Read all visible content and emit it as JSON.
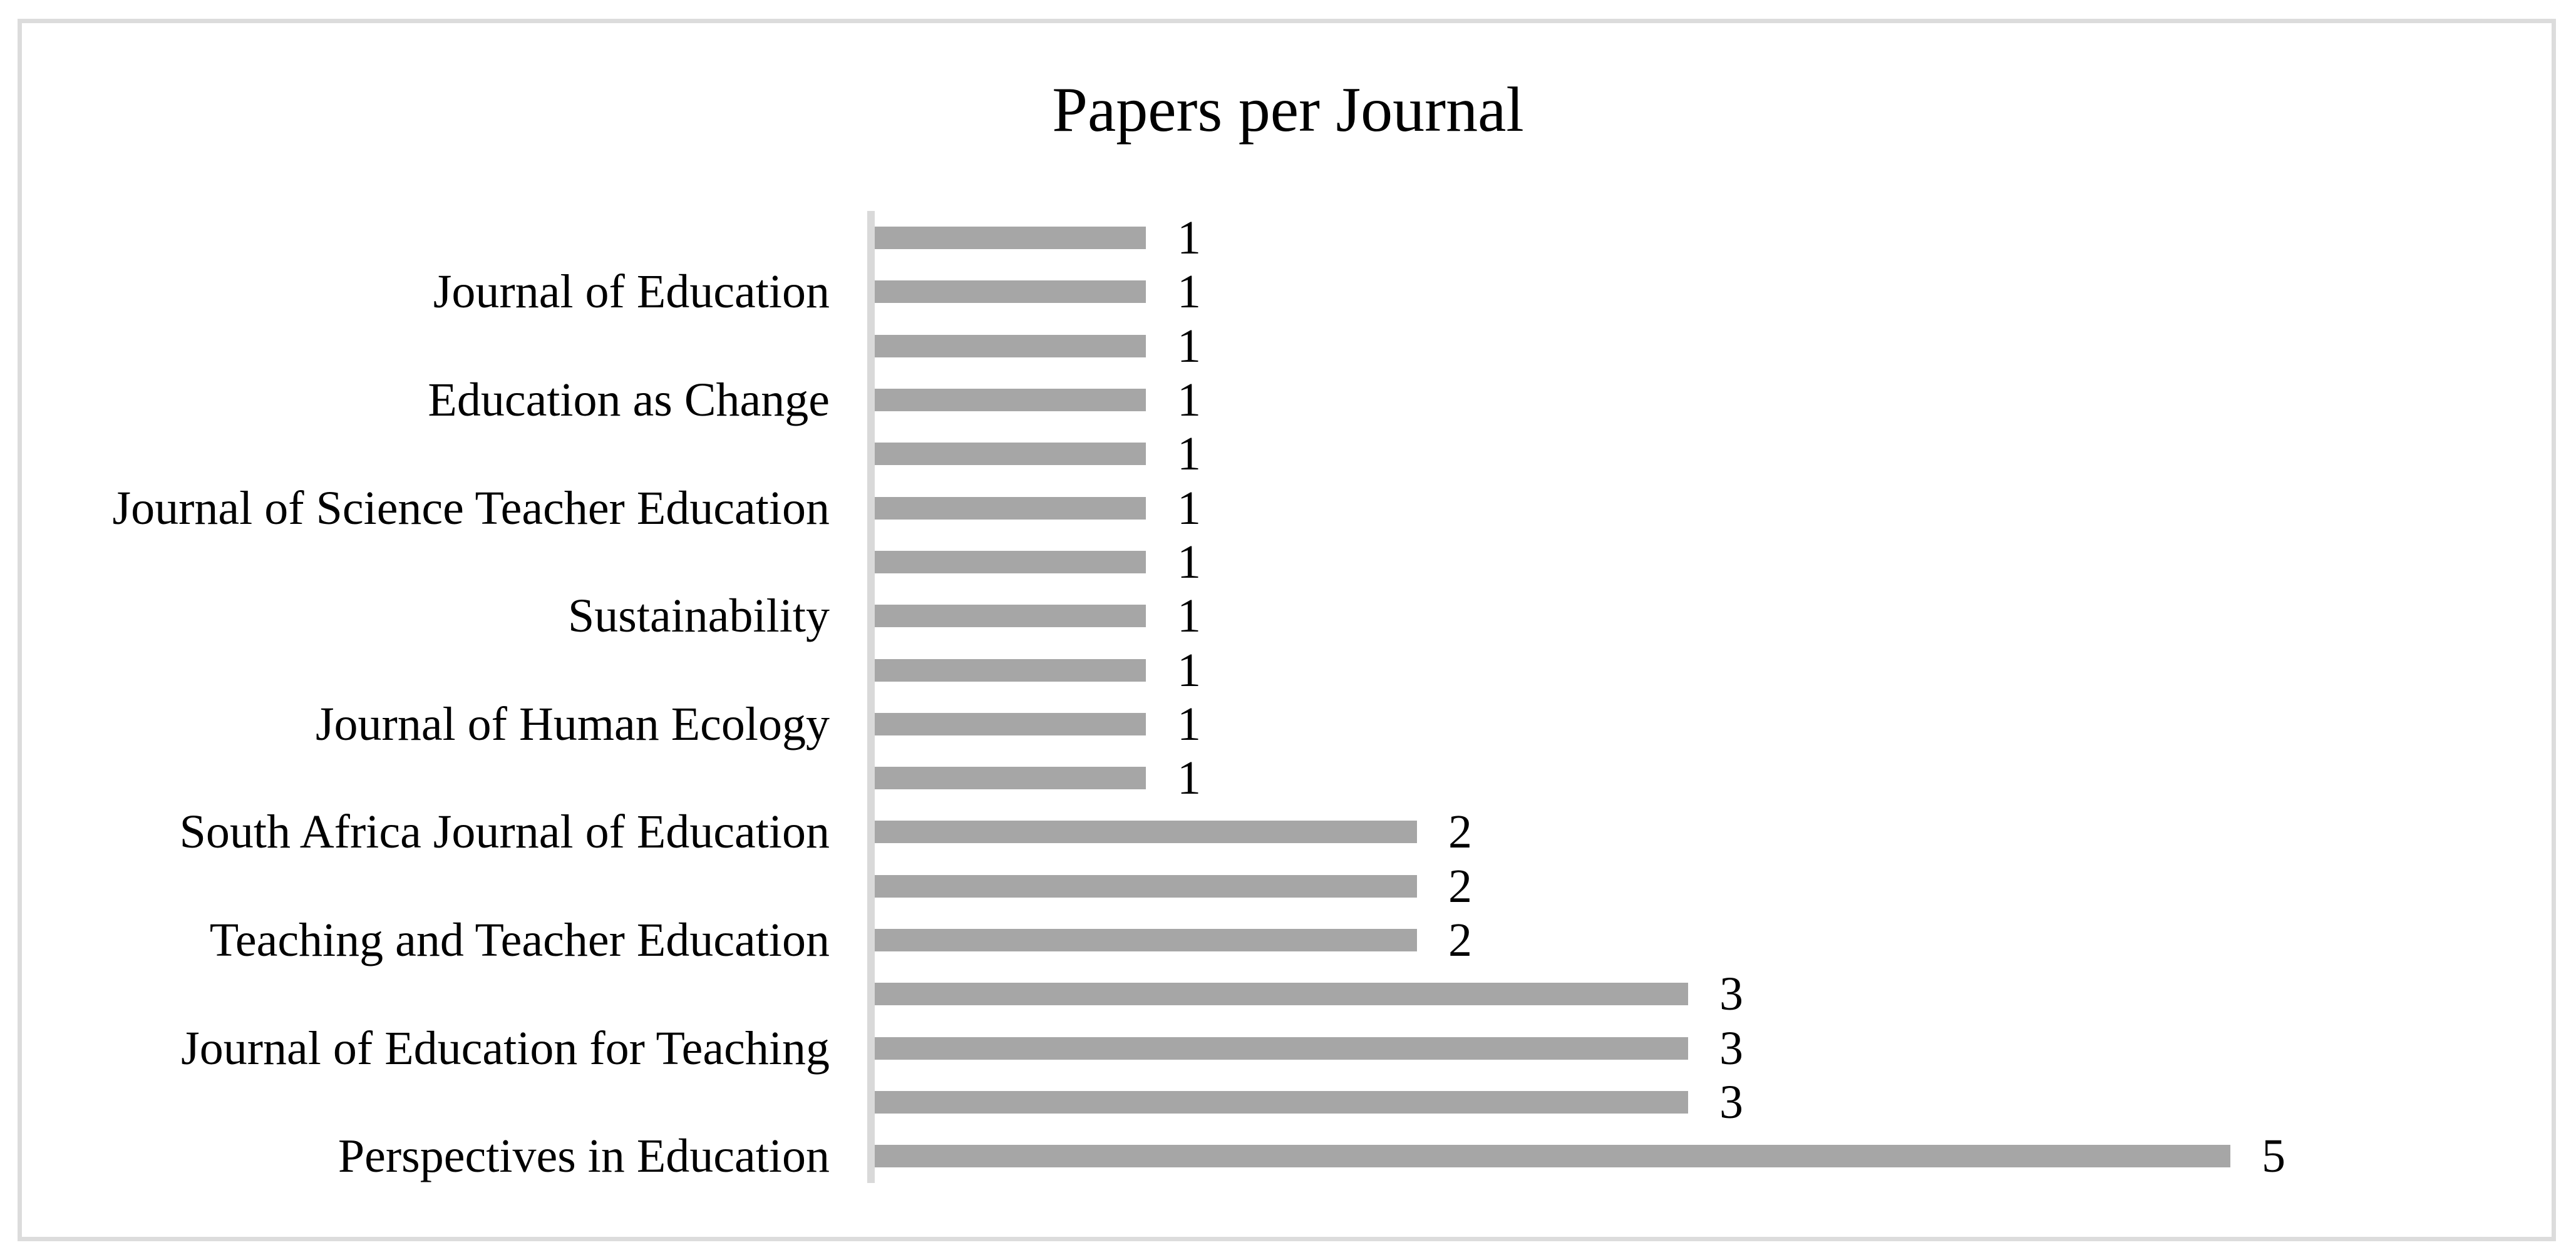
{
  "title": "Papers per Journal",
  "chart_data": {
    "type": "bar",
    "orientation": "horizontal",
    "title": "Papers per Journal",
    "xlabel": "",
    "ylabel": "",
    "xlim": [
      0,
      5
    ],
    "grid": false,
    "legend": false,
    "value_labels_position": "outside-end",
    "category_axis_note": "category labels visible only for every second bar; intermediate bars unlabeled",
    "bars": [
      {
        "label": "",
        "value": 1
      },
      {
        "label": "Journal of Education",
        "value": 1
      },
      {
        "label": "",
        "value": 1
      },
      {
        "label": "Education as Change",
        "value": 1
      },
      {
        "label": "",
        "value": 1
      },
      {
        "label": "Journal of Science Teacher Education",
        "value": 1
      },
      {
        "label": "",
        "value": 1
      },
      {
        "label": "Sustainability",
        "value": 1
      },
      {
        "label": "",
        "value": 1
      },
      {
        "label": "Journal of Human Ecology",
        "value": 1
      },
      {
        "label": "",
        "value": 1
      },
      {
        "label": "South Africa Journal of Education",
        "value": 2
      },
      {
        "label": "",
        "value": 2
      },
      {
        "label": "Teaching and Teacher Education",
        "value": 2
      },
      {
        "label": "",
        "value": 3
      },
      {
        "label": "Journal of Education for Teaching",
        "value": 3
      },
      {
        "label": "",
        "value": 3
      },
      {
        "label": "Perspectives in Education",
        "value": 5
      }
    ]
  },
  "colors": {
    "bar": "#a6a6a6",
    "axis_line": "#d9d9d9",
    "frame_border": "#dcdcdc",
    "text": "#000000",
    "background": "#ffffff"
  }
}
